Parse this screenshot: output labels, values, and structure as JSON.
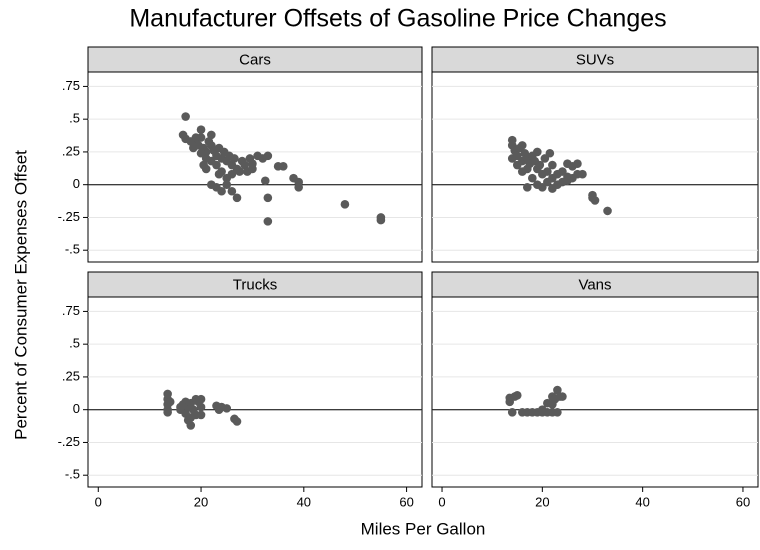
{
  "chart_data": {
    "type": "scatter",
    "title": "Manufacturer Offsets of Gasoline Price Changes",
    "xlabel": "Miles Per Gallon",
    "ylabel": "Percent of Consumer Expenses Offset",
    "xlim": [
      -2,
      63
    ],
    "ylim": [
      -0.59,
      0.86
    ],
    "xticks": [
      0,
      20,
      40,
      60
    ],
    "yticks": [
      {
        "value": -0.5,
        "label": "-.5"
      },
      {
        "value": -0.25,
        "label": "-.25"
      },
      0,
      {
        "value": 0.25,
        "label": ".25"
      },
      {
        "value": 0.5,
        "label": ".5"
      },
      {
        "value": 0.75,
        "label": ".75"
      }
    ],
    "yline": 0,
    "grid": true,
    "color": "#5a5a5a",
    "panels": [
      {
        "name": "Cars",
        "x": [
          17,
          16.5,
          17,
          18,
          19,
          19.5,
          20,
          20,
          20.5,
          21,
          21,
          21.5,
          22,
          22,
          22.5,
          23,
          23,
          23.5,
          24,
          24,
          24.5,
          25,
          25,
          25.5,
          26,
          26,
          26.5,
          27,
          27,
          28,
          28.5,
          29,
          29.5,
          30,
          31,
          32,
          33,
          32.5,
          33,
          33,
          35,
          36,
          38,
          39,
          39,
          48,
          55,
          55,
          22,
          23,
          24,
          25,
          21,
          20,
          19,
          18.5,
          26,
          27.5,
          30,
          22,
          23.5,
          20.5
        ],
        "y": [
          0.52,
          0.38,
          0.35,
          0.33,
          0.32,
          0.3,
          0.42,
          0.36,
          0.28,
          0.25,
          0.2,
          0.33,
          0.3,
          0.18,
          0.26,
          0.22,
          0.15,
          0.28,
          0.2,
          0.1,
          0.25,
          0.18,
          0.05,
          0.22,
          0.15,
          -0.05,
          0.2,
          0.12,
          -0.1,
          0.18,
          0.15,
          0.1,
          0.2,
          0.16,
          0.22,
          0.2,
          0.22,
          0.03,
          -0.1,
          -0.28,
          0.14,
          0.14,
          0.05,
          0.02,
          -0.02,
          -0.15,
          -0.25,
          -0.27,
          0.0,
          -0.02,
          -0.05,
          0.0,
          0.12,
          0.24,
          0.36,
          0.28,
          0.08,
          0.1,
          0.12,
          0.38,
          0.08,
          0.15
        ]
      },
      {
        "name": "SUVs",
        "x": [
          14,
          14,
          14,
          14.5,
          15,
          15,
          15.5,
          16,
          16,
          16.5,
          17,
          17,
          17.5,
          18,
          18,
          18.5,
          19,
          19,
          19.5,
          20,
          20,
          20.5,
          21,
          21,
          21.5,
          22,
          22,
          23,
          23,
          24,
          24,
          25,
          25,
          26,
          26,
          27,
          27,
          28,
          30,
          30,
          30.5,
          33,
          17,
          22,
          25,
          19,
          16
        ],
        "y": [
          0.34,
          0.3,
          0.2,
          0.26,
          0.22,
          0.15,
          0.28,
          0.18,
          0.1,
          0.24,
          0.2,
          0.12,
          0.16,
          0.22,
          0.05,
          0.18,
          0.12,
          0.0,
          0.15,
          0.08,
          -0.02,
          0.2,
          0.1,
          0.02,
          0.24,
          0.05,
          0.15,
          0.08,
          0.0,
          0.1,
          0.02,
          0.16,
          0.06,
          0.14,
          0.05,
          0.16,
          0.08,
          0.08,
          -0.08,
          -0.1,
          -0.12,
          -0.2,
          -0.02,
          -0.03,
          0.03,
          0.25,
          0.3
        ]
      },
      {
        "name": "Trucks",
        "x": [
          13.5,
          13.5,
          13.5,
          13.5,
          13.5,
          14,
          16,
          16.5,
          17,
          17,
          17.5,
          17.5,
          18,
          18,
          18.5,
          19,
          19,
          19.5,
          20,
          20,
          23,
          23.5,
          24,
          25,
          26.5,
          27,
          16,
          18,
          20
        ],
        "y": [
          0.12,
          0.08,
          0.04,
          0.0,
          -0.02,
          0.06,
          0.0,
          0.04,
          0.06,
          -0.03,
          0.02,
          -0.08,
          -0.12,
          0.05,
          0.0,
          0.08,
          -0.04,
          0.06,
          -0.04,
          0.02,
          0.03,
          0.0,
          0.02,
          0.01,
          -0.07,
          -0.09,
          0.02,
          -0.06,
          0.08
        ]
      },
      {
        "name": "Vans",
        "x": [
          13.5,
          13.5,
          14,
          14.5,
          15,
          16,
          17,
          18,
          19,
          20,
          21,
          22,
          22,
          22.5,
          23,
          23,
          23.5,
          24,
          21,
          20,
          22
        ],
        "y": [
          0.09,
          0.06,
          -0.02,
          0.1,
          0.11,
          -0.02,
          -0.02,
          -0.02,
          -0.02,
          -0.02,
          -0.02,
          -0.02,
          0.1,
          0.08,
          0.15,
          -0.02,
          0.1,
          0.1,
          0.05,
          0.0,
          0.04
        ]
      }
    ]
  }
}
